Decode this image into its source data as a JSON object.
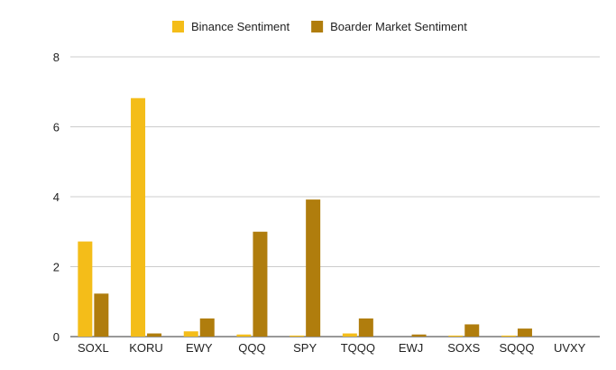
{
  "chart_data": {
    "type": "bar",
    "title": "",
    "xlabel": "",
    "ylabel": "",
    "ylim": [
      0,
      8
    ],
    "yticks": [
      0,
      2,
      4,
      6,
      8
    ],
    "grid": true,
    "legend_position": "top-center",
    "categories": [
      "SOXL",
      "KORU",
      "EWY",
      "QQQ",
      "SPY",
      "TQQQ",
      "EWJ",
      "SOXS",
      "SQQQ",
      "UVXY"
    ],
    "series": [
      {
        "name": "Binance Sentiment",
        "color": "#f4bd19",
        "values": [
          2.72,
          6.82,
          0.15,
          0.06,
          0.03,
          0.09,
          0.0,
          0.03,
          0.03,
          0.0
        ]
      },
      {
        "name": "Boarder Market Sentiment",
        "color": "#b07d0d",
        "values": [
          1.23,
          0.09,
          0.52,
          3.0,
          3.92,
          0.52,
          0.06,
          0.35,
          0.23,
          0.0
        ]
      }
    ]
  }
}
